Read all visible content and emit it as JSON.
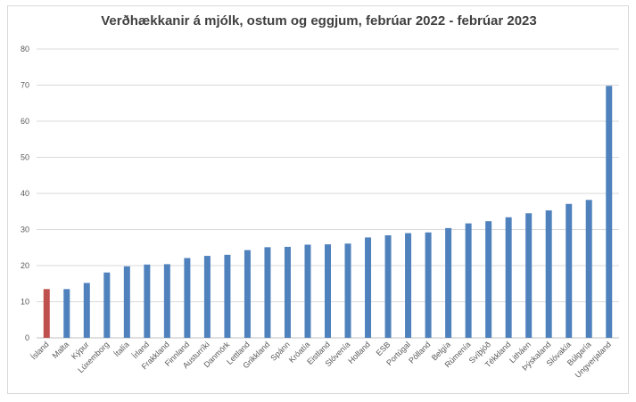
{
  "chart_data": {
    "type": "bar",
    "title": "Verðhækkanir á mjólk, ostum og eggjum, febrúar 2022 - febrúar 2023",
    "xlabel": "",
    "ylabel": "",
    "ylim": [
      0,
      80
    ],
    "yticks": [
      0,
      10,
      20,
      30,
      40,
      50,
      60,
      70,
      80
    ],
    "grid": true,
    "legend": "none",
    "colors": {
      "default": "#4f81bd",
      "highlight": "#c0504d"
    },
    "highlight_category": "Ísland",
    "categories": [
      "Ísland",
      "Malta",
      "Kýpur",
      "Lúxemborg",
      "Ítalía",
      "Írland",
      "Frakkland",
      "Finnland",
      "Austurríki",
      "Danmörk",
      "Lettland",
      "Grikkland",
      "Spánn",
      "Króatía",
      "Eistland",
      "Slóvenía",
      "Holland",
      "ESB",
      "Portúgal",
      "Pólland",
      "Belgía",
      "Rúmenía",
      "Svíþjóð",
      "Tékkland",
      "Litháen",
      "Þýskaland",
      "Slóvakía",
      "Búlgaría",
      "Ungverjaland"
    ],
    "values": [
      13.5,
      13.5,
      15.2,
      18.1,
      19.8,
      20.3,
      20.4,
      22.1,
      22.7,
      23.0,
      24.3,
      25.1,
      25.2,
      25.8,
      25.9,
      26.1,
      27.8,
      28.4,
      29.0,
      29.2,
      30.4,
      31.7,
      32.3,
      33.4,
      34.5,
      35.3,
      37.1,
      38.2,
      69.8
    ]
  }
}
